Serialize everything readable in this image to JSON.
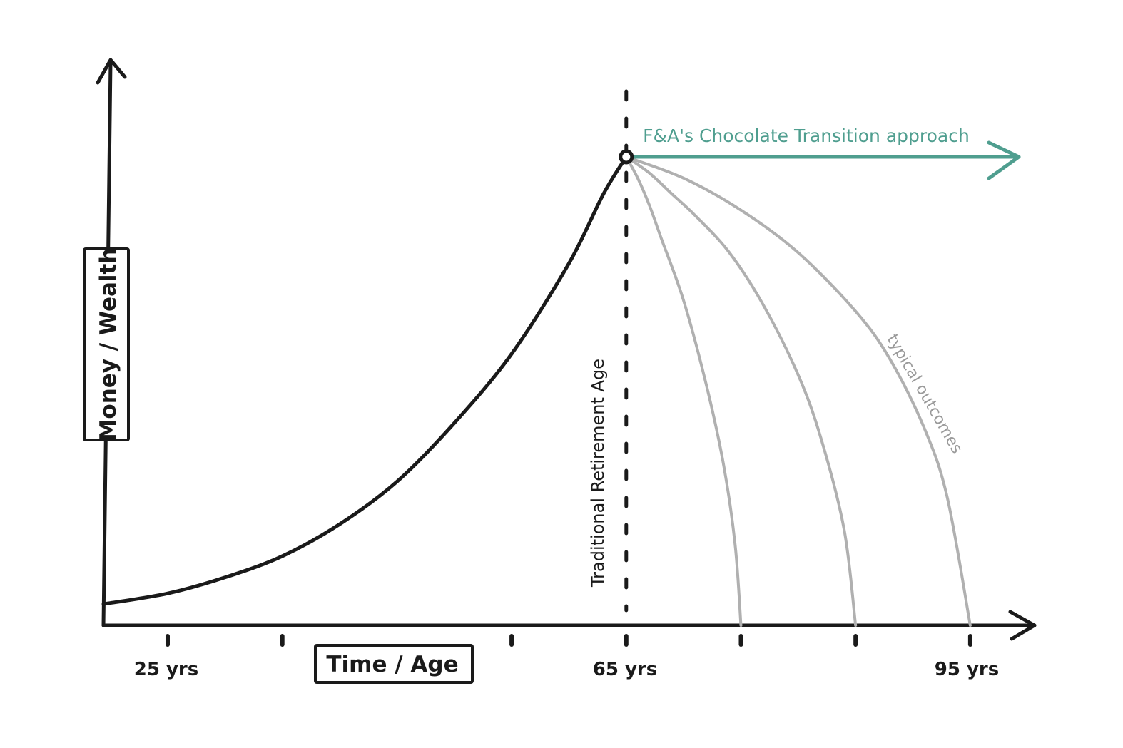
{
  "chart_data": {
    "type": "line",
    "xlabel": "Time / Age",
    "ylabel": "Money / Wealth",
    "x_ticks": [
      25,
      35,
      55,
      65,
      75,
      85,
      95
    ],
    "x_tick_labels": [
      {
        "x": 25,
        "label": "25 yrs"
      },
      {
        "x": 65,
        "label": "65 yrs"
      },
      {
        "x": 95,
        "label": "95 yrs"
      }
    ],
    "xlim": [
      19.4,
      100
    ],
    "ylim": [
      0,
      100
    ],
    "series": [
      {
        "role": "accumulation",
        "color": "#1a1a1a",
        "x": [
          19.4,
          25,
          30,
          35,
          40,
          45,
          50,
          55,
          60,
          63,
          65
        ],
        "y": [
          4,
          6,
          9,
          13,
          19,
          27,
          38,
          51,
          68,
          81,
          88
        ]
      },
      {
        "role": "outcome",
        "color": "#b0b0b0",
        "x": [
          65,
          66,
          67,
          68,
          70,
          72,
          73.5,
          74.5,
          75
        ],
        "y": [
          88,
          84,
          79,
          73,
          61,
          45,
          30,
          15,
          0
        ]
      },
      {
        "role": "outcome",
        "color": "#b0b0b0",
        "x": [
          65,
          67,
          69,
          71,
          74,
          77,
          80,
          82,
          84,
          85
        ],
        "y": [
          88,
          85,
          81,
          77,
          70,
          60,
          47,
          35,
          18,
          0
        ]
      },
      {
        "role": "outcome",
        "color": "#b0b0b0",
        "x": [
          65,
          70,
          75,
          80,
          85,
          88,
          91,
          93,
          95
        ],
        "y": [
          88,
          84,
          78,
          70,
          59,
          50,
          37,
          24,
          0
        ]
      },
      {
        "role": "transition",
        "color": "#4f9e8f",
        "x": [
          65,
          100
        ],
        "y": [
          88,
          88
        ]
      }
    ],
    "annotations": [
      {
        "text": "Traditional Retirement Age",
        "x": 65
      },
      {
        "text": "F&A's Chocolate Transition approach",
        "color": "#4f9e8f"
      },
      {
        "text": "typical outcomes",
        "color": "#9a9a9a"
      }
    ],
    "grid": false,
    "legend": "none"
  }
}
